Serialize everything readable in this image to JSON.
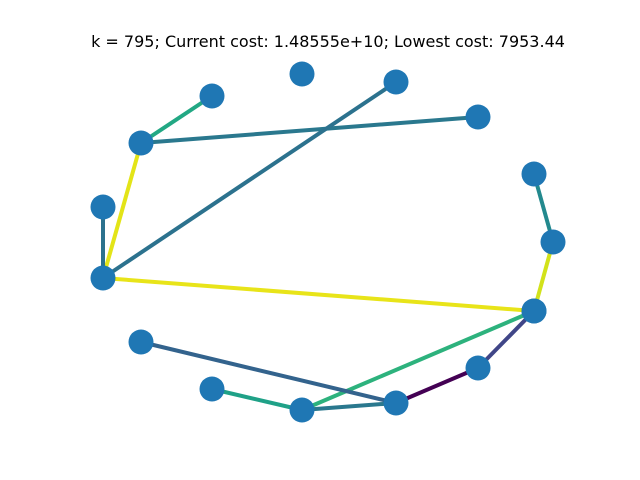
{
  "title": "k = 795; Current cost: 1.48555e+10; Lowest cost: 7953.44",
  "node_color": "#1f77b4",
  "nodes": [
    {
      "id": "n1",
      "label": ""
    },
    {
      "id": "n2",
      "label": ""
    },
    {
      "id": "n3",
      "label": ""
    },
    {
      "id": "n4",
      "label": ""
    },
    {
      "id": "n5",
      "label": ""
    },
    {
      "id": "n6",
      "label": ""
    },
    {
      "id": "n7",
      "label": ""
    },
    {
      "id": "n8",
      "label": ""
    },
    {
      "id": "n9",
      "label": ""
    },
    {
      "id": "n10",
      "label": ""
    },
    {
      "id": "n11",
      "label": ""
    },
    {
      "id": "n12",
      "label": ""
    },
    {
      "id": "n13",
      "label": ""
    },
    {
      "id": "n14",
      "label": ""
    },
    {
      "id": "n15",
      "label": ""
    },
    {
      "id": "n16",
      "label": ""
    }
  ],
  "edges": [
    {
      "from": "n2",
      "to": "n5",
      "color": "#22a884"
    },
    {
      "from": "n5",
      "to": "n4",
      "color": "#2a788e"
    },
    {
      "from": "n5",
      "to": "n9",
      "color": "#e3e418"
    },
    {
      "from": "n8",
      "to": "n9",
      "color": "#2c728e"
    },
    {
      "from": "n9",
      "to": "n3",
      "color": "#2c728e"
    },
    {
      "from": "n9",
      "to": "n12",
      "color": "#e8e419"
    },
    {
      "from": "n6",
      "to": "n7",
      "color": "#23898e"
    },
    {
      "from": "n7",
      "to": "n12",
      "color": "#d2e21b"
    },
    {
      "from": "n12",
      "to": "n15",
      "color": "#2db27d"
    },
    {
      "from": "n12",
      "to": "n14",
      "color": "#404688"
    },
    {
      "from": "n14",
      "to": "n16",
      "color": "#440154"
    },
    {
      "from": "n10",
      "to": "n16",
      "color": "#33638d"
    },
    {
      "from": "n11",
      "to": "n15",
      "color": "#1fa187"
    },
    {
      "from": "n15",
      "to": "n16",
      "color": "#2a788e"
    }
  ]
}
